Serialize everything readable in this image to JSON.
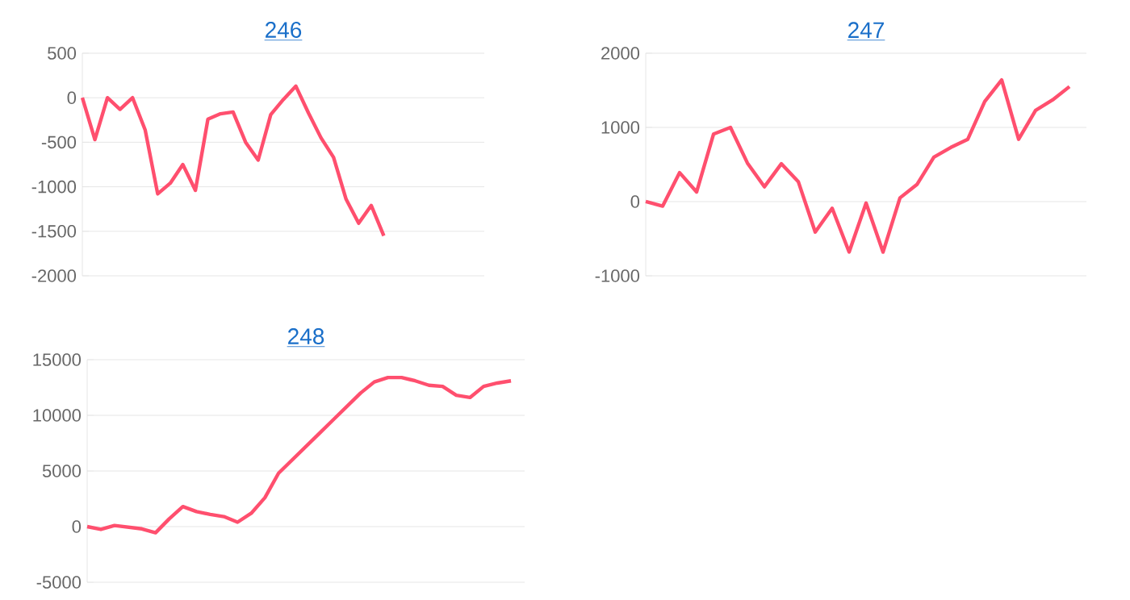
{
  "chart_data": [
    {
      "type": "line",
      "title": "246",
      "color": "#ff4f6e",
      "grid": "y",
      "tick_labels": "y",
      "categories": [
        null,
        null,
        null,
        null,
        null,
        null,
        null,
        null,
        null,
        null,
        null,
        null,
        null,
        null,
        null,
        null,
        null,
        null,
        null,
        null,
        null,
        null,
        null,
        null,
        null,
        null,
        null,
        null,
        null,
        null,
        null,
        null,
        null
      ],
      "values": [
        0,
        -470,
        0,
        -130,
        0,
        -360,
        -1080,
        -960,
        -750,
        -1040,
        -240,
        -180,
        -160,
        -500,
        -700,
        -190,
        -20,
        130,
        -170,
        -450,
        -670,
        -1140,
        -1410,
        -1210,
        -1550,
        null,
        null,
        null,
        null,
        null,
        null,
        null,
        null
      ],
      "ylim": [
        -2000,
        500
      ],
      "yticks": [
        -2000,
        -1500,
        -1000,
        -500,
        0,
        500
      ]
    },
    {
      "type": "line",
      "title": "247",
      "color": "#ff4f6e",
      "grid": "y",
      "tick_labels": "y",
      "categories": [
        null,
        null,
        null,
        null,
        null,
        null,
        null,
        null,
        null,
        null,
        null,
        null,
        null,
        null,
        null,
        null,
        null,
        null,
        null,
        null,
        null,
        null,
        null,
        null,
        null,
        null,
        null
      ],
      "values": [
        0,
        -60,
        390,
        130,
        910,
        1000,
        520,
        200,
        510,
        270,
        -410,
        -90,
        -680,
        -20,
        -680,
        50,
        230,
        600,
        730,
        840,
        1350,
        1640,
        840,
        1230,
        1370,
        1550,
        null
      ],
      "ylim": [
        -1000,
        2000
      ],
      "yticks": [
        -1000,
        0,
        1000,
        2000
      ]
    },
    {
      "type": "line",
      "title": "248",
      "color": "#ff4f6e",
      "grid": "y",
      "tick_labels": "y",
      "categories": [
        null,
        null,
        null,
        null,
        null,
        null,
        null,
        null,
        null,
        null,
        null,
        null,
        null,
        null,
        null,
        null,
        null,
        null,
        null,
        null,
        null,
        null,
        null,
        null,
        null,
        null,
        null,
        null,
        null,
        null,
        null,
        null,
        null
      ],
      "values": [
        0,
        -250,
        100,
        -50,
        -200,
        -550,
        700,
        1800,
        1350,
        1100,
        900,
        400,
        1200,
        2600,
        4800,
        6000,
        7200,
        8400,
        9600,
        10800,
        12000,
        13000,
        13400,
        13400,
        13100,
        12700,
        12600,
        11800,
        11600,
        12600,
        12900,
        13100,
        null
      ],
      "ylim": [
        -5000,
        15000
      ],
      "yticks": [
        -5000,
        0,
        5000,
        10000,
        15000
      ]
    }
  ]
}
